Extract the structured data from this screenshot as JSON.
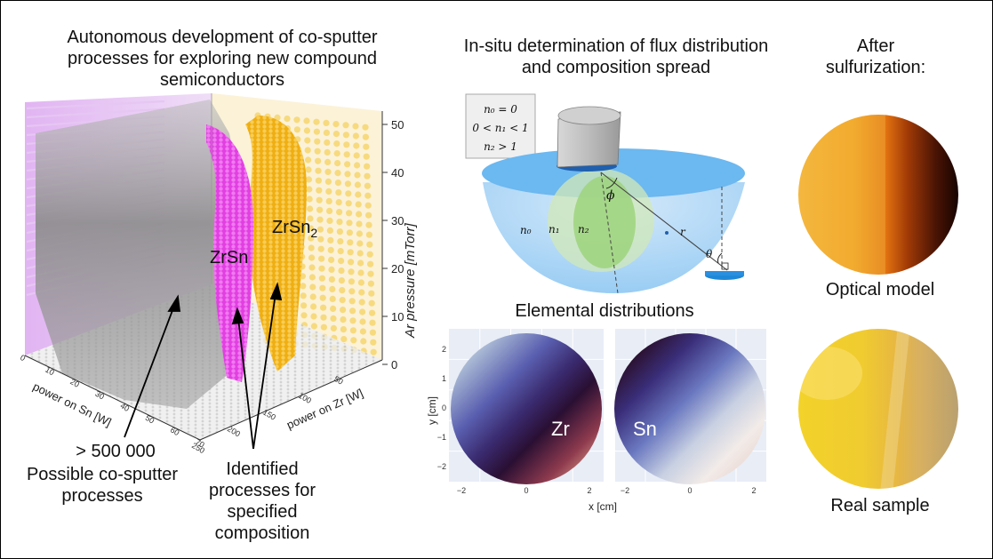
{
  "titles": {
    "left": "Autonomous development of co-sputter processes for exploring new compound semiconductors",
    "middle": "In-situ determination of flux distribution and composition spread",
    "right": "After sulfurization:"
  },
  "plot3d": {
    "z_axis_label": "Ar pressure [mTorr]",
    "z_ticks": [
      "0",
      "10",
      "20",
      "30",
      "40",
      "50"
    ],
    "x_axis_label": "power on Sn [W]",
    "x_ticks": [
      "0",
      "10",
      "20",
      "30",
      "40",
      "50",
      "60",
      "70"
    ],
    "y_axis_label": "power on Zr [W]",
    "y_ticks": [
      "250",
      "200",
      "150",
      "100",
      "50"
    ],
    "compound_1": "ZrSn",
    "compound_2_base": "ZrSn",
    "compound_2_sub": "2",
    "colors": {
      "grid_cloud": "#8a8a8a",
      "ZrSn": "#e040e0",
      "ZrSn2": "#f2b210",
      "left_wall": "#d08ae8",
      "right_wall": "#f7dc8a"
    }
  },
  "annotations": {
    "count": "> 500 000",
    "count_caption": "Possible co-sputter processes",
    "identified": "Identified processes for specified composition"
  },
  "schematic": {
    "legend_line1": "n₀ = 0",
    "legend_line2": "0 < n₁ < 1",
    "legend_line3": "n₂ > 1",
    "label_n0": "n₀",
    "label_n1": "n₁",
    "label_n2": "n₂",
    "label_phi": "ϕ",
    "label_r": "r",
    "label_theta": "θ"
  },
  "elemental": {
    "title": "Elemental distributions",
    "x_label": "x [cm]",
    "y_label": "y [cm]",
    "tick_labels_x": [
      "−2",
      "0",
      "2"
    ],
    "tick_labels_y": [
      "2",
      "1",
      "0",
      "−1",
      "−2"
    ],
    "map1_label": "Zr",
    "map2_label": "Sn"
  },
  "results": {
    "optical_label": "Optical model",
    "real_label": "Real sample"
  }
}
